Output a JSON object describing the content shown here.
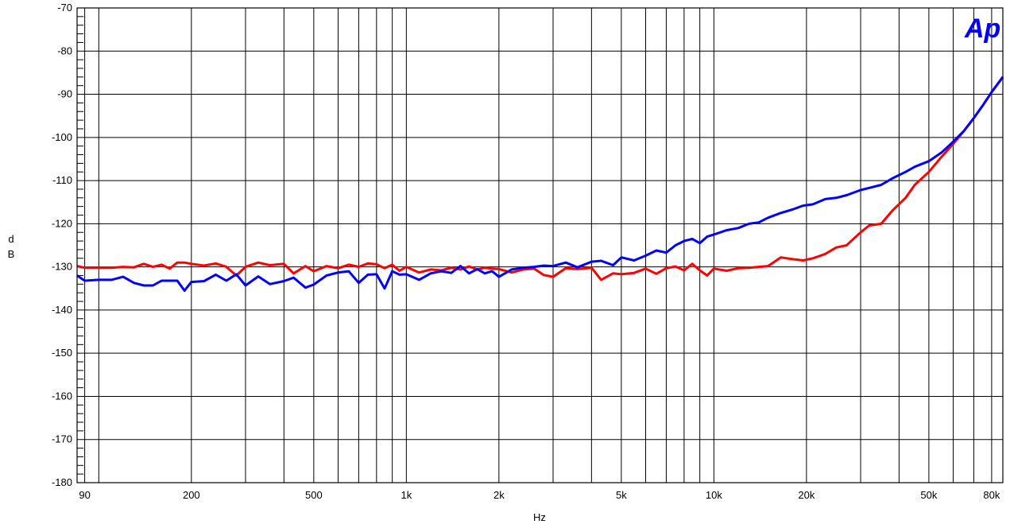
{
  "chart_data": {
    "type": "line",
    "xlabel": "Hz",
    "ylabel_line1": "d",
    "ylabel_line2": "B",
    "x_scale": "log",
    "xlim": [
      85,
      87000
    ],
    "ylim": [
      -180,
      -70
    ],
    "grid": true,
    "x_ticks": [
      {
        "value": 90,
        "label": "90"
      },
      {
        "value": 200,
        "label": "200"
      },
      {
        "value": 500,
        "label": "500"
      },
      {
        "value": 1000,
        "label": "1k"
      },
      {
        "value": 2000,
        "label": "2k"
      },
      {
        "value": 5000,
        "label": "5k"
      },
      {
        "value": 10000,
        "label": "10k"
      },
      {
        "value": 20000,
        "label": "20k"
      },
      {
        "value": 50000,
        "label": "50k"
      },
      {
        "value": 80000,
        "label": "80k"
      }
    ],
    "x_gridlines": [
      90,
      100,
      200,
      300,
      400,
      500,
      600,
      700,
      800,
      900,
      1000,
      2000,
      3000,
      4000,
      5000,
      6000,
      7000,
      8000,
      9000,
      10000,
      20000,
      30000,
      40000,
      50000,
      60000,
      70000,
      80000
    ],
    "y_ticks": [
      -70,
      -80,
      -90,
      -100,
      -110,
      -120,
      -130,
      -140,
      -150,
      -160,
      -170,
      -180
    ],
    "y_tick_labels": [
      "-70",
      "-80",
      "-90",
      "-100",
      "-110",
      "-120",
      "-130",
      "-140",
      "-150",
      "-160",
      "-170",
      "-180"
    ],
    "series": [
      {
        "color": "#ff0000",
        "x": [
          85,
          90,
          100,
          110,
          120,
          130,
          140,
          150,
          160,
          170,
          180,
          190,
          200,
          220,
          240,
          260,
          280,
          300,
          330,
          360,
          400,
          430,
          470,
          500,
          550,
          600,
          650,
          700,
          750,
          800,
          850,
          900,
          950,
          1000,
          1100,
          1200,
          1300,
          1400,
          1500,
          1600,
          1700,
          1800,
          1900,
          2000,
          2200,
          2400,
          2600,
          2800,
          3000,
          3300,
          3600,
          4000,
          4300,
          4700,
          5000,
          5500,
          6000,
          6500,
          7000,
          7500,
          8000,
          8500,
          9000,
          9500,
          10000,
          11000,
          12000,
          13000,
          14000,
          15000,
          16500,
          18000,
          19500,
          21000,
          23000,
          25000,
          27000,
          30000,
          32000,
          35000,
          38000,
          42000,
          45000,
          50000,
          55000,
          60000,
          65000,
          70000,
          75000,
          80000,
          87000
        ],
        "y": [
          -129.8,
          -130.2,
          -130.2,
          -130.2,
          -130.0,
          -130.1,
          -129.3,
          -130.0,
          -129.5,
          -130.4,
          -129.0,
          -129.0,
          -129.3,
          -129.7,
          -129.2,
          -130.0,
          -132.0,
          -130.0,
          -129.0,
          -129.6,
          -129.3,
          -131.5,
          -129.8,
          -131.0,
          -129.8,
          -130.3,
          -129.5,
          -130.0,
          -129.2,
          -129.4,
          -130.3,
          -129.5,
          -130.9,
          -130.0,
          -131.3,
          -130.6,
          -130.8,
          -130.2,
          -130.6,
          -129.9,
          -130.6,
          -130.2,
          -130.4,
          -130.5,
          -131.3,
          -130.6,
          -130.4,
          -131.9,
          -132.3,
          -130.3,
          -130.5,
          -130.2,
          -133.0,
          -131.5,
          -131.7,
          -131.4,
          -130.4,
          -131.6,
          -130.3,
          -129.9,
          -130.8,
          -129.3,
          -130.8,
          -132.0,
          -130.4,
          -130.9,
          -130.3,
          -130.2,
          -130.0,
          -129.8,
          -127.8,
          -128.2,
          -128.5,
          -128.0,
          -127.0,
          -125.5,
          -125.0,
          -122.0,
          -120.4,
          -120.0,
          -117.0,
          -114.0,
          -111.0,
          -108.0,
          -104.5,
          -101.5,
          -98.5,
          -95.5,
          -92.5,
          -89.5,
          -86.0
        ]
      },
      {
        "color": "#0000ff",
        "x": [
          85,
          90,
          100,
          110,
          120,
          130,
          140,
          150,
          160,
          170,
          180,
          190,
          200,
          220,
          240,
          260,
          280,
          300,
          330,
          360,
          400,
          430,
          470,
          500,
          550,
          600,
          650,
          700,
          750,
          800,
          850,
          900,
          950,
          1000,
          1100,
          1200,
          1300,
          1400,
          1500,
          1600,
          1700,
          1800,
          1900,
          2000,
          2200,
          2400,
          2600,
          2800,
          3000,
          3300,
          3600,
          4000,
          4300,
          4700,
          5000,
          5500,
          6000,
          6500,
          7000,
          7500,
          8000,
          8500,
          9000,
          9500,
          10000,
          11000,
          12000,
          13000,
          14000,
          15000,
          16500,
          18000,
          19500,
          21000,
          23000,
          25000,
          27000,
          30000,
          32000,
          35000,
          38000,
          42000,
          45000,
          50000,
          55000,
          60000,
          65000,
          70000,
          75000,
          80000,
          87000
        ],
        "y": [
          -132.0,
          -133.2,
          -133.0,
          -133.0,
          -132.3,
          -133.7,
          -134.3,
          -134.3,
          -133.2,
          -133.2,
          -133.2,
          -135.5,
          -133.5,
          -133.3,
          -131.8,
          -133.2,
          -131.7,
          -134.3,
          -132.2,
          -134.0,
          -133.3,
          -132.5,
          -134.8,
          -134.1,
          -132.0,
          -131.3,
          -131.0,
          -133.7,
          -131.8,
          -131.7,
          -135.0,
          -131.0,
          -131.8,
          -131.7,
          -133.0,
          -131.5,
          -131.0,
          -131.4,
          -129.8,
          -131.5,
          -130.5,
          -131.5,
          -131.0,
          -132.3,
          -130.6,
          -130.2,
          -130.0,
          -129.7,
          -129.8,
          -129.0,
          -130.1,
          -128.8,
          -128.6,
          -129.6,
          -127.8,
          -128.5,
          -127.4,
          -126.2,
          -126.7,
          -125.0,
          -124.0,
          -123.5,
          -124.5,
          -123.0,
          -122.5,
          -121.5,
          -121.0,
          -120.0,
          -119.7,
          -118.6,
          -117.5,
          -116.7,
          -115.8,
          -115.5,
          -114.3,
          -114.0,
          -113.4,
          -112.2,
          -111.7,
          -111.0,
          -109.5,
          -108.0,
          -106.8,
          -105.5,
          -103.5,
          -101.0,
          -98.5,
          -95.5,
          -92.5,
          -89.5,
          -86.0
        ]
      }
    ]
  },
  "logo": {
    "text": "Ap",
    "color": "#0000ff"
  }
}
